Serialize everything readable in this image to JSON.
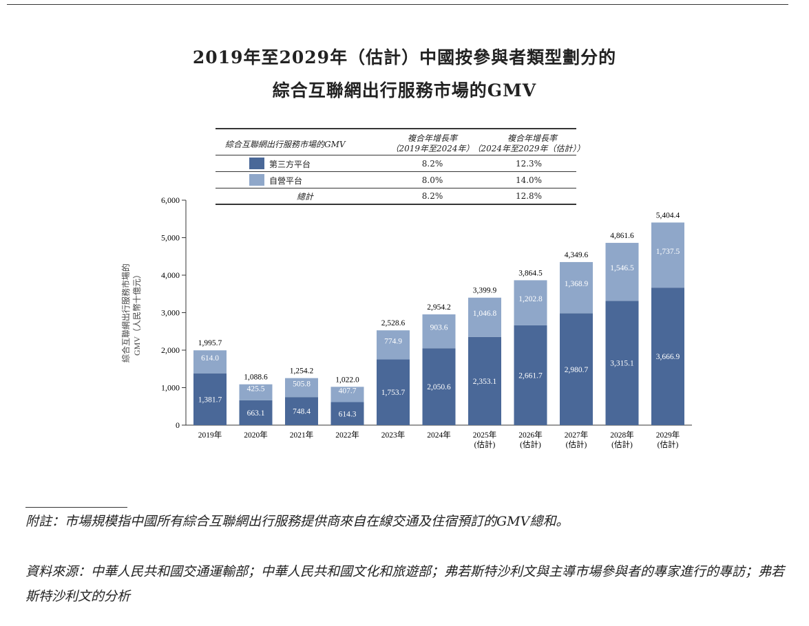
{
  "title": {
    "line1": "2019年至2029年（估計）中國按參與者類型劃分的",
    "line2": "綜合互聯網出行服務市場的GMV"
  },
  "table": {
    "header": "綜合互聯網出行服務市場的GMV",
    "col1": {
      "line1": "複合年增長率",
      "line2": "（2019年至2024年）"
    },
    "col2": {
      "line1": "複合年增長率",
      "line2": "（2024年至2029年（估計））"
    },
    "rows": [
      {
        "label": "第三方平台",
        "c1": "8.2%",
        "c2": "12.3%",
        "color": "#4a6898"
      },
      {
        "label": "自營平台",
        "c1": "8.0%",
        "c2": "14.0%",
        "color": "#8fa7c9"
      },
      {
        "label": "總計",
        "c1": "8.2%",
        "c2": "12.8%"
      }
    ]
  },
  "chart_data": {
    "type": "bar",
    "stacked": true,
    "ylabel": "綜合互聯網出行服務市場的GMV（人民幣十億元）",
    "ylabel_line1": "綜合互聯網出行服務市場的",
    "ylabel_line2": "GMV（人民幣十億元）",
    "ylim": [
      0,
      6000
    ],
    "yticks": [
      "0",
      "1,000",
      "2,000",
      "3,000",
      "4,000",
      "5,000",
      "6,000"
    ],
    "categories": [
      "2019年",
      "2020年",
      "2021年",
      "2022年",
      "2023年",
      "2024年",
      "2025年\n(估計)",
      "2026年\n(估計)",
      "2027年\n(估計)",
      "2028年\n(估計)",
      "2029年\n(估計)"
    ],
    "series": [
      {
        "name": "第三方平台",
        "color": "#4a6898",
        "values": [
          1381.7,
          663.1,
          748.4,
          614.3,
          1753.7,
          2050.6,
          2353.1,
          2661.7,
          2980.7,
          3315.1,
          3666.9
        ],
        "labels": [
          "1,381.7",
          "663.1",
          "748.4",
          "614.3",
          "1,753.7",
          "2,050.6",
          "2,353.1",
          "2,661.7",
          "2,980.7",
          "3,315.1",
          "3,666.9"
        ]
      },
      {
        "name": "自營平台",
        "color": "#8fa7c9",
        "values": [
          614.0,
          425.5,
          505.8,
          407.7,
          774.9,
          903.6,
          1046.8,
          1202.8,
          1368.9,
          1546.5,
          1737.5
        ],
        "labels": [
          "614.0",
          "425.5",
          "505.8",
          "407.7",
          "774.9",
          "903.6",
          "1,046.8",
          "1,202.8",
          "1,368.9",
          "1,546.5",
          "1,737.5"
        ]
      }
    ],
    "totals": [
      "1,995.7",
      "1,088.6",
      "1,254.2",
      "1,022.0",
      "2,528.6",
      "2,954.2",
      "3,399.9",
      "3,864.5",
      "4,349.6",
      "4,861.6",
      "5,404.4"
    ]
  },
  "notes": {
    "note": "附註：市場規模指中國所有綜合互聯網出行服務提供商來自在線交通及住宿預訂的GMV總和。",
    "source": "資料來源：中華人民共和國交通運輸部；中華人民共和國文化和旅遊部；弗若斯特沙利文與主導市場參與者的專家進行的專訪；弗若斯特沙利文的分析"
  }
}
